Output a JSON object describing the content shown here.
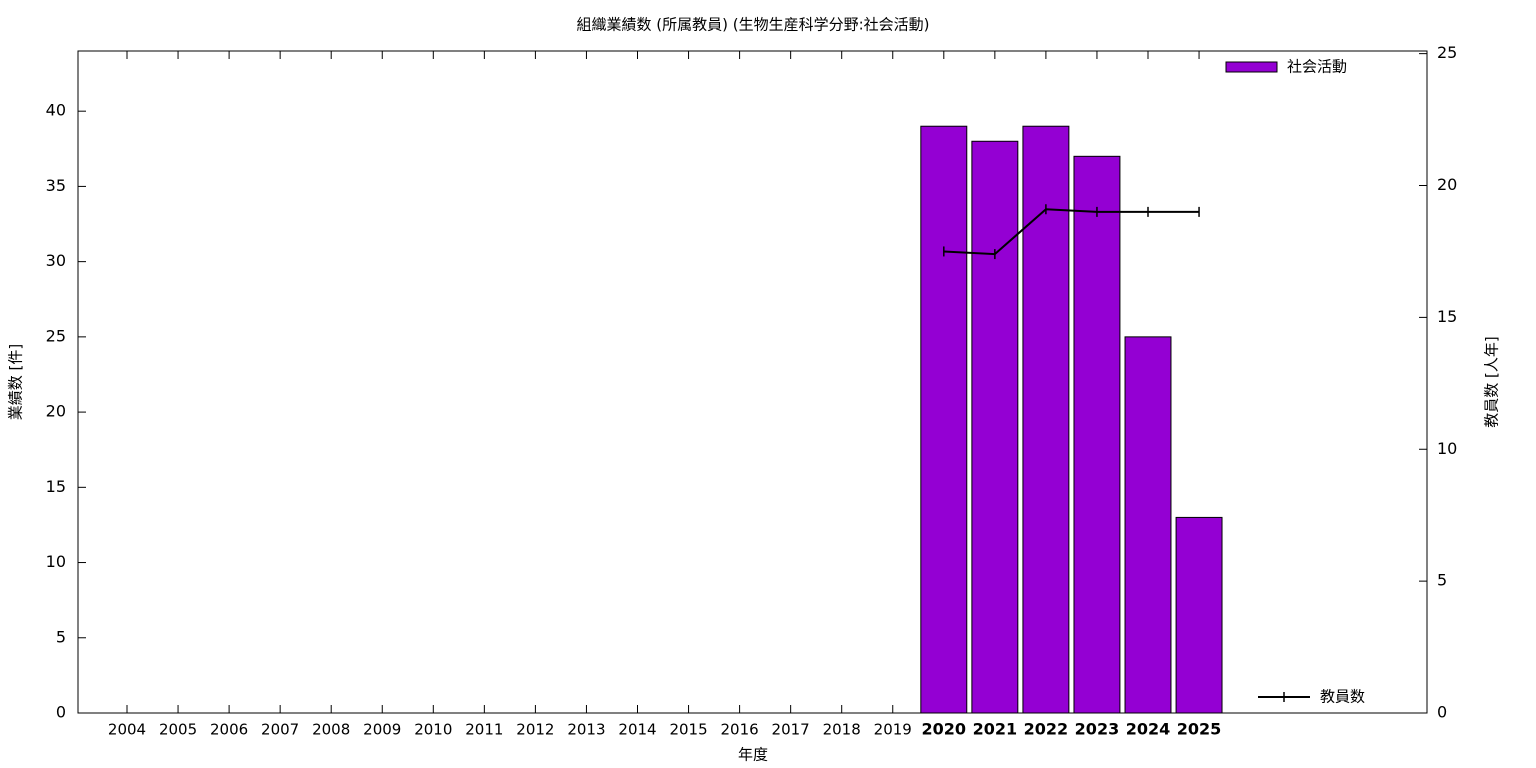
{
  "chart_data": {
    "type": "bar",
    "title": "組織業績数 (所属教員) (生物生産科学分野:社会活動)",
    "x_label": "年度",
    "y_label": "業績数 [件]",
    "y2_label": "教員数 [人年]",
    "categories": [
      "2004",
      "2005",
      "2006",
      "2007",
      "2008",
      "2009",
      "2010",
      "2011",
      "2012",
      "2013",
      "2014",
      "2015",
      "2016",
      "2017",
      "2018",
      "2019",
      "2020",
      "2021",
      "2022",
      "2023",
      "2024",
      "2025"
    ],
    "series": [
      {
        "name": "社会活動",
        "type": "bar",
        "color": "#9400d3",
        "legend": "top right",
        "values": [
          null,
          null,
          null,
          null,
          null,
          null,
          null,
          null,
          null,
          null,
          null,
          null,
          null,
          null,
          null,
          null,
          39,
          38,
          39,
          37,
          25,
          13
        ]
      },
      {
        "name": "教員数",
        "type": "line",
        "color": "#000000",
        "axis": "y2",
        "legend": "bottom right",
        "values": [
          null,
          null,
          null,
          null,
          null,
          null,
          null,
          null,
          null,
          null,
          null,
          null,
          null,
          null,
          null,
          null,
          17.5,
          17.4,
          19.1,
          19,
          19,
          19
        ]
      }
    ],
    "ylim": [
      0,
      44
    ],
    "yticks": [
      0,
      5,
      10,
      15,
      20,
      25,
      30,
      35,
      40
    ],
    "y2lim": [
      0,
      25.1
    ],
    "y2ticks": [
      0,
      5,
      10,
      15,
      20,
      25
    ]
  }
}
